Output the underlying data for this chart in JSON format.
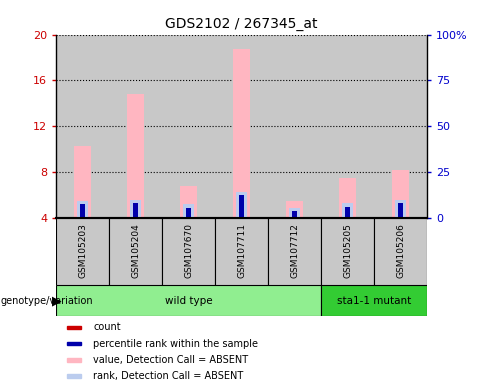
{
  "title": "GDS2102 / 267345_at",
  "samples": [
    "GSM105203",
    "GSM105204",
    "GSM107670",
    "GSM107711",
    "GSM107712",
    "GSM105205",
    "GSM105206"
  ],
  "groups": [
    "wild type",
    "wild type",
    "wild type",
    "wild type",
    "wild type",
    "sta1-1 mutant",
    "sta1-1 mutant"
  ],
  "bar_width": 0.18,
  "ylim_left": [
    4,
    20
  ],
  "ylim_right": [
    0,
    100
  ],
  "yticks_left": [
    4,
    8,
    12,
    16,
    20
  ],
  "yticks_right": [
    0,
    25,
    50,
    75,
    100
  ],
  "ytick_labels_left": [
    "4",
    "8",
    "12",
    "16",
    "20"
  ],
  "ytick_labels_right": [
    "0",
    "25",
    "50",
    "75",
    "100%"
  ],
  "left_axis_color": "#CC0000",
  "right_axis_color": "#0000CC",
  "count_color": "#CC0000",
  "percentile_color": "#0000AA",
  "value_absent_color": "#FFB6C1",
  "rank_absent_color": "#BBCCEE",
  "count_values": [
    4.3,
    4.4,
    4.3,
    4.4,
    4.3,
    4.3,
    4.3
  ],
  "percentile_values": [
    5.2,
    5.3,
    4.9,
    6.0,
    4.6,
    5.0,
    5.3
  ],
  "value_absent_values": [
    10.3,
    14.8,
    6.8,
    18.7,
    5.5,
    7.5,
    8.2
  ],
  "rank_absent_values": [
    5.5,
    5.6,
    5.2,
    6.3,
    4.9,
    5.3,
    5.6
  ],
  "genotype_label": "genotype/variation",
  "legend_entries": [
    {
      "color": "#CC0000",
      "label": "count"
    },
    {
      "color": "#0000AA",
      "label": "percentile rank within the sample"
    },
    {
      "color": "#FFB6C1",
      "label": "value, Detection Call = ABSENT"
    },
    {
      "color": "#BBCCEE",
      "label": "rank, Detection Call = ABSENT"
    }
  ],
  "sample_bg_color": "#C8C8C8",
  "wildtype_color": "#90EE90",
  "mutant_color": "#33CC33",
  "plot_bg_color": "#FFFFFF"
}
